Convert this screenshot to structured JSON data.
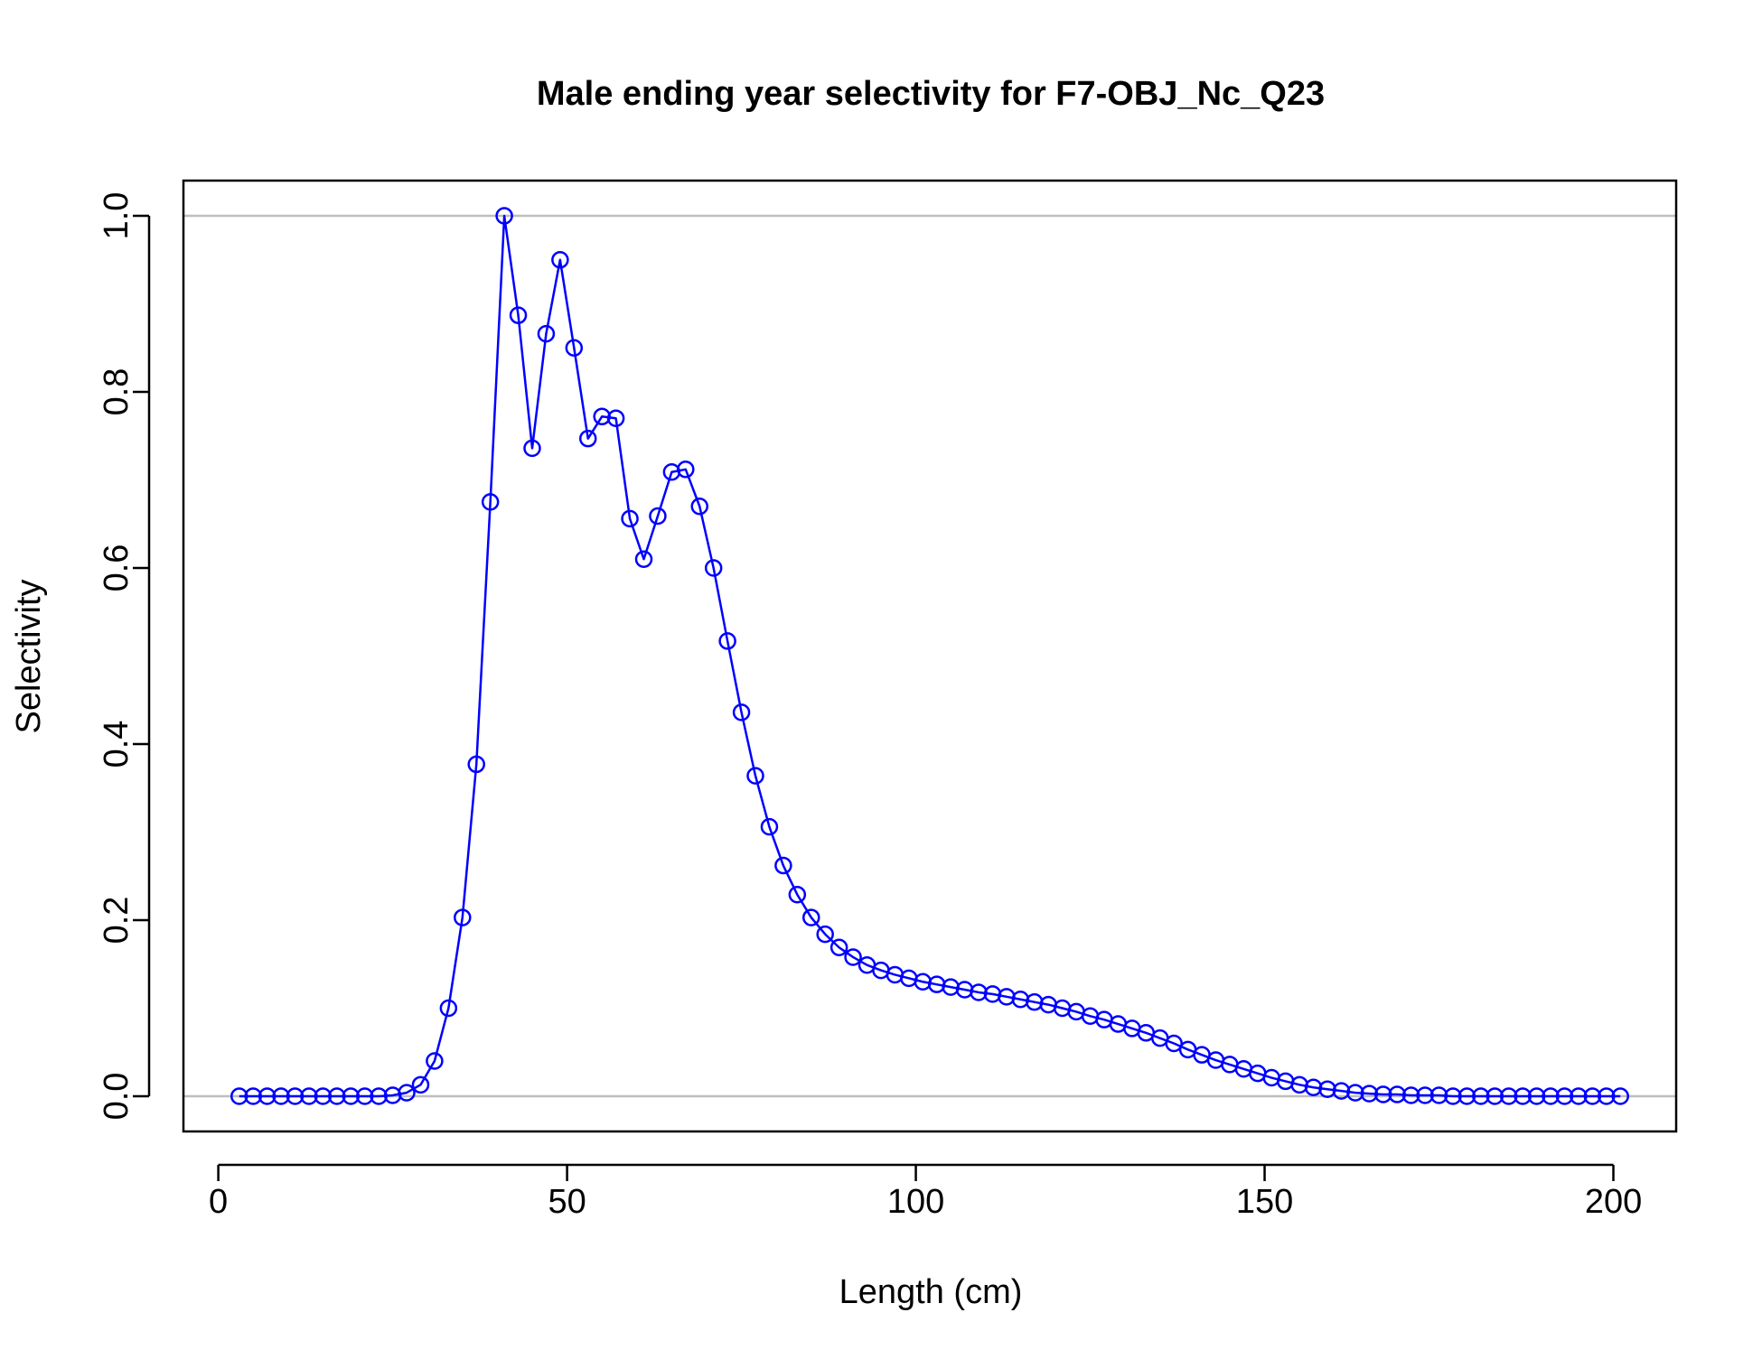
{
  "colors": {
    "series": "#0000ff",
    "refline": "#bebebe",
    "frame": "#000000"
  },
  "chart_data": {
    "type": "line",
    "title": "Male ending year selectivity for F7-OBJ_Nc_Q23",
    "xlabel": "Length (cm)",
    "ylabel": "Selectivity",
    "xlim": [
      -5,
      209
    ],
    "ylim": [
      -0.04,
      1.04
    ],
    "xticks": [
      0,
      50,
      100,
      150,
      200
    ],
    "xtick_labels": [
      "0",
      "50",
      "100",
      "150",
      "200"
    ],
    "yticks": [
      0,
      0.2,
      0.4,
      0.6,
      0.8,
      1.0
    ],
    "ytick_labels": [
      "0.0",
      "0.2",
      "0.4",
      "0.6",
      "0.8",
      "1.0"
    ],
    "hlines": [
      0,
      1
    ],
    "marker": "open-circle",
    "series": [
      {
        "x": [
          3,
          5,
          7,
          9,
          11,
          13,
          15,
          17,
          19,
          21,
          23,
          25,
          27,
          29,
          31,
          33,
          35,
          37,
          39,
          41,
          43,
          45,
          47,
          49,
          51,
          53,
          55,
          57,
          59,
          61,
          63,
          65,
          67,
          69,
          71,
          73,
          75,
          77,
          79,
          81,
          83,
          85,
          87,
          89,
          91,
          93,
          95,
          97,
          99,
          101,
          103,
          105,
          107,
          109,
          111,
          113,
          115,
          117,
          119,
          121,
          123,
          125,
          127,
          129,
          131,
          133,
          135,
          137,
          139,
          141,
          143,
          145,
          147,
          149,
          151,
          153,
          155,
          157,
          159,
          161,
          163,
          165,
          167,
          169,
          171,
          173,
          175,
          177,
          179,
          181,
          183,
          185,
          187,
          189,
          191,
          193,
          195,
          197,
          199,
          201
        ],
        "y": [
          0,
          0,
          0,
          0,
          0,
          0,
          0,
          0,
          0,
          0,
          0,
          0.001,
          0.004,
          0.013,
          0.04,
          0.1,
          0.203,
          0.377,
          0.675,
          1.0,
          0.887,
          0.736,
          0.866,
          0.95,
          0.85,
          0.747,
          0.772,
          0.77,
          0.656,
          0.61,
          0.659,
          0.709,
          0.712,
          0.67,
          0.6,
          0.517,
          0.436,
          0.364,
          0.306,
          0.262,
          0.229,
          0.203,
          0.184,
          0.169,
          0.158,
          0.149,
          0.143,
          0.138,
          0.134,
          0.13,
          0.127,
          0.124,
          0.121,
          0.118,
          0.116,
          0.113,
          0.11,
          0.107,
          0.104,
          0.1,
          0.096,
          0.091,
          0.087,
          0.082,
          0.077,
          0.072,
          0.066,
          0.06,
          0.053,
          0.047,
          0.041,
          0.036,
          0.031,
          0.026,
          0.021,
          0.017,
          0.013,
          0.01,
          0.008,
          0.006,
          0.004,
          0.003,
          0.002,
          0.002,
          0.001,
          0.001,
          0.001,
          0,
          0,
          0,
          0,
          0,
          0,
          0,
          0,
          0,
          0,
          0,
          0,
          0
        ]
      }
    ]
  }
}
